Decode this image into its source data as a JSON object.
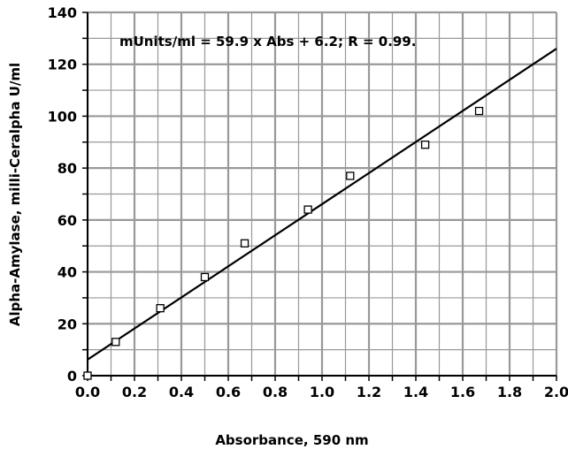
{
  "chart_data": {
    "type": "scatter",
    "title": "",
    "xlabel": "Absorbance,   590  nm",
    "ylabel": "Alpha-Amylase,     milli-Ceralpha    U/ml",
    "xlim": [
      0.0,
      2.0
    ],
    "ylim": [
      0,
      140
    ],
    "x_ticks": [
      "0.0",
      "0.2",
      "0.4",
      "0.6",
      "0.8",
      "1.0",
      "1.2",
      "1.4",
      "1.6",
      "1.8",
      "2.0"
    ],
    "y_ticks": [
      "0",
      "20",
      "40",
      "60",
      "80",
      "100",
      "120",
      "140"
    ],
    "grid": true,
    "series": [
      {
        "marker": "open-square",
        "x": [
          0.0,
          0.12,
          0.31,
          0.5,
          0.67,
          0.94,
          1.12,
          1.44,
          1.67
        ],
        "y": [
          0,
          13,
          26,
          38,
          51,
          64,
          77,
          89,
          102
        ]
      }
    ],
    "fit_line": {
      "slope": 59.9,
      "intercept": 6.2,
      "x_range": [
        0.0,
        2.0
      ]
    },
    "annotation": "mUnits/ml  =  59.9  x  Abs  +  6.2;    R  =  0.99.",
    "colors": {
      "grid": "#999999",
      "axis": "#000000",
      "marker_stroke": "#000000",
      "line": "#000000"
    }
  }
}
